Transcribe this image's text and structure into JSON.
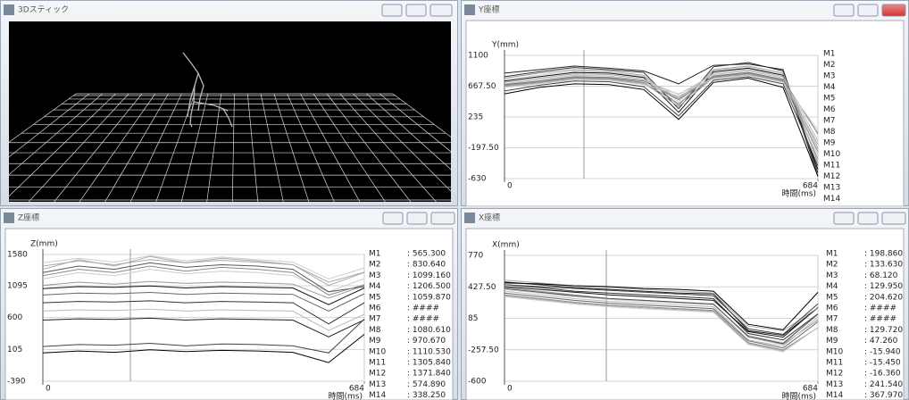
{
  "stick_window": {
    "title": "3Dスティック"
  },
  "chart_data": [
    {
      "type": "line",
      "title": "Y座標",
      "ylabel": "Y(mm)",
      "xlabel": "時間(ms)",
      "x": [
        0,
        76,
        152,
        228,
        304,
        380,
        456,
        532,
        608,
        684
      ],
      "xlim": [
        0,
        684
      ],
      "xticks": [
        0,
        684
      ],
      "ylim": [
        -630,
        1100
      ],
      "yticks": [
        1100,
        {
          "value": 667.5,
          "label": "667.50"
        },
        235,
        {
          "value": -197.5,
          "label": "-197.50"
        },
        -630
      ],
      "grid": true,
      "series": [
        {
          "name": "M1",
          "color": "#222222",
          "values": [
            850,
            900,
            950,
            920,
            880,
            700,
            960,
            980,
            900,
            -550
          ]
        },
        {
          "name": "M2",
          "color": "#333333",
          "values": [
            800,
            870,
            930,
            900,
            860,
            350,
            940,
            1000,
            880,
            -600
          ]
        },
        {
          "name": "M3",
          "color": "#999999",
          "values": [
            780,
            850,
            900,
            880,
            820,
            400,
            900,
            950,
            850,
            -400
          ]
        },
        {
          "name": "M4",
          "color": "#cccccc",
          "values": [
            760,
            820,
            880,
            860,
            800,
            450,
            880,
            930,
            830,
            -300
          ]
        },
        {
          "name": "M5",
          "color": "#111111",
          "values": [
            740,
            800,
            860,
            850,
            790,
            300,
            870,
            920,
            820,
            -500
          ]
        },
        {
          "name": "M6",
          "color": "#aaaaaa",
          "values": [
            720,
            780,
            840,
            830,
            770,
            500,
            850,
            900,
            800,
            -200
          ]
        },
        {
          "name": "M7",
          "color": "#bbbbbb",
          "values": [
            700,
            760,
            820,
            810,
            750,
            550,
            830,
            880,
            780,
            -100
          ]
        },
        {
          "name": "M8",
          "color": "#777777",
          "values": [
            690,
            740,
            800,
            790,
            740,
            480,
            810,
            860,
            760,
            0
          ]
        },
        {
          "name": "M9",
          "color": "#888888",
          "values": [
            680,
            730,
            790,
            780,
            720,
            420,
            800,
            850,
            750,
            -250
          ]
        },
        {
          "name": "M10",
          "color": "#999999",
          "values": [
            670,
            720,
            780,
            770,
            710,
            380,
            790,
            840,
            740,
            -350
          ]
        },
        {
          "name": "M11",
          "color": "#aaaaaa",
          "values": [
            660,
            710,
            770,
            760,
            700,
            520,
            780,
            830,
            730,
            -150
          ]
        },
        {
          "name": "M12",
          "color": "#cccccc",
          "values": [
            650,
            700,
            760,
            750,
            690,
            560,
            770,
            820,
            720,
            50
          ]
        },
        {
          "name": "M13",
          "color": "#444444",
          "values": [
            600,
            680,
            740,
            730,
            660,
            250,
            750,
            800,
            700,
            -450
          ]
        },
        {
          "name": "M14",
          "color": "#000000",
          "values": [
            560,
            650,
            700,
            690,
            620,
            200,
            720,
            780,
            650,
            -600
          ]
        }
      ]
    },
    {
      "type": "line",
      "title": "Z座標",
      "ylabel": "Z(mm)",
      "xlabel": "時間(ms)",
      "x": [
        0,
        76,
        152,
        228,
        304,
        380,
        456,
        532,
        608,
        684
      ],
      "xlim": [
        0,
        684
      ],
      "xticks": [
        0,
        684
      ],
      "ylim": [
        -390,
        1580
      ],
      "yticks": [
        1580,
        1095,
        600,
        105,
        -390
      ],
      "grid": true,
      "series": [
        {
          "name": "M1",
          "color": "#222222",
          "readout": ": 565.300",
          "values": [
            560,
            580,
            570,
            590,
            560,
            580,
            570,
            560,
            300,
            565
          ]
        },
        {
          "name": "M2",
          "color": "#333333",
          "readout": ": 830.640",
          "values": [
            830,
            850,
            840,
            860,
            830,
            850,
            840,
            830,
            500,
            830
          ]
        },
        {
          "name": "M3",
          "color": "#999999",
          "readout": ": 1099.160",
          "values": [
            1100,
            1150,
            1120,
            1160,
            1130,
            1150,
            1140,
            1120,
            900,
            1099
          ]
        },
        {
          "name": "M4",
          "color": "#cccccc",
          "readout": ": 1206.500",
          "values": [
            1200,
            1300,
            1250,
            1350,
            1280,
            1320,
            1300,
            1250,
            1000,
            1206
          ]
        },
        {
          "name": "M5",
          "color": "#111111",
          "readout": ": 1059.870",
          "values": [
            1050,
            1080,
            1070,
            1090,
            1060,
            1080,
            1070,
            1060,
            800,
            1060
          ]
        },
        {
          "name": "M6",
          "color": "#aaaaaa",
          "readout": ": ####",
          "values": [
            1350,
            1500,
            1400,
            1550,
            1450,
            1520,
            1480,
            1420,
            1100,
            1300
          ]
        },
        {
          "name": "M7",
          "color": "#bbbbbb",
          "readout": ": ####",
          "values": [
            700,
            720,
            710,
            730,
            700,
            720,
            710,
            700,
            400,
            650
          ]
        },
        {
          "name": "M8",
          "color": "#555555",
          "readout": ": 1080.610",
          "values": [
            1300,
            1400,
            1350,
            1450,
            1380,
            1420,
            1400,
            1350,
            1000,
            1080
          ]
        },
        {
          "name": "M9",
          "color": "#666666",
          "readout": ": 970.670",
          "values": [
            950,
            980,
            970,
            990,
            960,
            980,
            970,
            960,
            700,
            970
          ]
        },
        {
          "name": "M10",
          "color": "#888888",
          "readout": ": 1110.530",
          "values": [
            1250,
            1350,
            1300,
            1400,
            1320,
            1380,
            1350,
            1300,
            950,
            1110
          ]
        },
        {
          "name": "M11",
          "color": "#aaaaaa",
          "readout": ": 1305.840",
          "values": [
            1400,
            1480,
            1420,
            1500,
            1450,
            1490,
            1460,
            1420,
            1150,
            1305
          ]
        },
        {
          "name": "M12",
          "color": "#cccccc",
          "readout": ": 1371.840",
          "values": [
            1450,
            1520,
            1460,
            1560,
            1480,
            1540,
            1500,
            1460,
            1200,
            1371
          ]
        },
        {
          "name": "M13",
          "color": "#444444",
          "readout": ": 574.890",
          "values": [
            150,
            180,
            170,
            200,
            160,
            190,
            180,
            160,
            50,
            575
          ]
        },
        {
          "name": "M14",
          "color": "#000000",
          "readout": ": 338.250",
          "values": [
            50,
            80,
            60,
            100,
            70,
            90,
            80,
            60,
            -100,
            338
          ]
        }
      ]
    },
    {
      "type": "line",
      "title": "X座標",
      "ylabel": "X(mm)",
      "xlabel": "時間(ms)",
      "x": [
        0,
        76,
        152,
        228,
        304,
        380,
        456,
        532,
        608,
        684
      ],
      "xlim": [
        0,
        684
      ],
      "xticks": [
        0,
        684
      ],
      "ylim": [
        -600,
        770
      ],
      "yticks": [
        770,
        {
          "value": 427.5,
          "label": "427.50"
        },
        85,
        {
          "value": -257.5,
          "label": "-257.50"
        },
        -600
      ],
      "grid": true,
      "series": [
        {
          "name": "M1",
          "color": "#222222",
          "readout": ": 198.860",
          "values": [
            480,
            450,
            420,
            400,
            380,
            360,
            350,
            -50,
            -100,
            199
          ]
        },
        {
          "name": "M2",
          "color": "#333333",
          "readout": ": 133.630",
          "values": [
            450,
            420,
            380,
            360,
            340,
            320,
            300,
            -80,
            -150,
            134
          ]
        },
        {
          "name": "M3",
          "color": "#999999",
          "readout": ": 68.120",
          "values": [
            420,
            380,
            340,
            300,
            280,
            260,
            240,
            -120,
            -200,
            68
          ]
        },
        {
          "name": "M4",
          "color": "#cccccc",
          "readout": ": 129.950",
          "values": [
            400,
            360,
            320,
            290,
            270,
            250,
            230,
            -100,
            -180,
            130
          ]
        },
        {
          "name": "M5",
          "color": "#111111",
          "readout": ": 204.620",
          "values": [
            430,
            400,
            370,
            340,
            320,
            300,
            280,
            -60,
            -120,
            205
          ]
        },
        {
          "name": "M6",
          "color": "#aaaaaa",
          "readout": ": ####",
          "values": [
            500,
            470,
            440,
            420,
            400,
            380,
            360,
            0,
            -50,
            200
          ]
        },
        {
          "name": "M7",
          "color": "#bbbbbb",
          "readout": ": ####",
          "values": [
            380,
            340,
            300,
            270,
            250,
            230,
            210,
            -150,
            -220,
            100
          ]
        },
        {
          "name": "M8",
          "color": "#555555",
          "readout": ": 129.720",
          "values": [
            410,
            370,
            330,
            300,
            280,
            260,
            240,
            -110,
            -190,
            130
          ]
        },
        {
          "name": "M9",
          "color": "#666666",
          "readout": ": 47.260",
          "values": [
            360,
            320,
            280,
            250,
            230,
            210,
            190,
            -160,
            -240,
            47
          ]
        },
        {
          "name": "M10",
          "color": "#888888",
          "readout": ": -15.940",
          "values": [
            340,
            300,
            260,
            230,
            210,
            190,
            170,
            -180,
            -260,
            -16
          ]
        },
        {
          "name": "M11",
          "color": "#aaaaaa",
          "readout": ": -15.450",
          "values": [
            330,
            290,
            250,
            220,
            200,
            180,
            160,
            -190,
            -270,
            -15
          ]
        },
        {
          "name": "M12",
          "color": "#cccccc",
          "readout": ": -16.360",
          "values": [
            320,
            280,
            240,
            210,
            190,
            170,
            150,
            -200,
            -280,
            -16
          ]
        },
        {
          "name": "M13",
          "color": "#444444",
          "readout": ": 241.540",
          "values": [
            450,
            430,
            410,
            390,
            370,
            350,
            330,
            -30,
            -90,
            242
          ]
        },
        {
          "name": "M14",
          "color": "#000000",
          "readout": ": 367.970",
          "values": [
            470,
            460,
            440,
            430,
            410,
            400,
            380,
            20,
            -40,
            368
          ]
        }
      ]
    }
  ]
}
